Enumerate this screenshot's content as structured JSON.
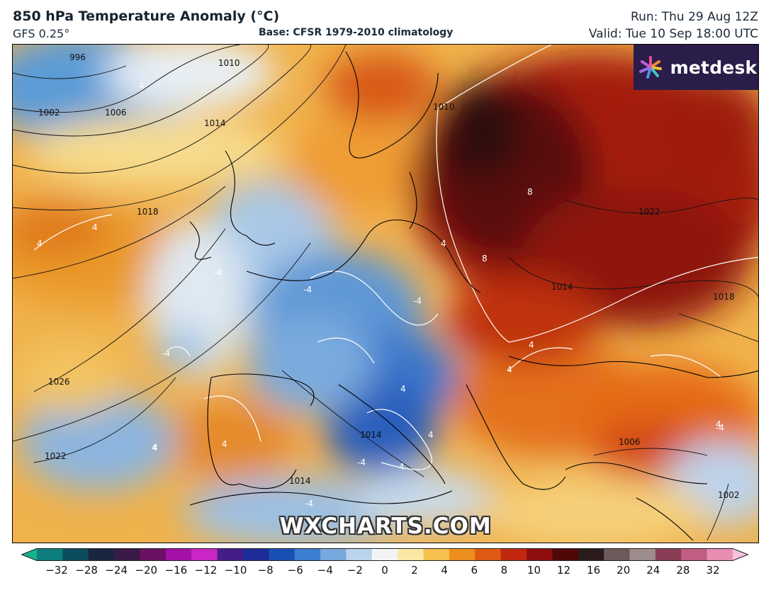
{
  "header": {
    "title": "850 hPa Temperature Anomaly (°C)",
    "model": "GFS 0.25°",
    "base": "Base: CFSR 1979-2010 climatology",
    "run": "Run: Thu 29 Aug 12Z",
    "valid": "Valid: Tue 10 Sep 18:00 UTC"
  },
  "logo": {
    "text": "metdesk",
    "icon": "metdesk-flower-icon"
  },
  "watermark": "WXCHARTS.COM",
  "isobar_labels": [
    "1002",
    "996",
    "1006",
    "1010",
    "1014",
    "1018",
    "1026",
    "1022",
    "1014",
    "1014",
    "1010",
    "1022",
    "1018",
    "1014",
    "1006",
    "1002"
  ],
  "anomaly_labels": [
    "4",
    "4",
    "4",
    "-4",
    "-4",
    "-4",
    "4",
    "4",
    "-4",
    "8",
    "8",
    "4",
    "4",
    "4",
    "-4",
    "4",
    "4",
    "-4",
    "4",
    "4",
    "4",
    "-4"
  ],
  "colorbar": {
    "ticks": [
      "−32",
      "−28",
      "−24",
      "−20",
      "−16",
      "−12",
      "−10",
      "−8",
      "−6",
      "−4",
      "−2",
      "0",
      "2",
      "4",
      "6",
      "8",
      "10",
      "12",
      "16",
      "20",
      "24",
      "28",
      "32"
    ],
    "colors": [
      "#12b38e",
      "#0e7e7c",
      "#0d4c5e",
      "#1a2540",
      "#3a1a46",
      "#6a1163",
      "#a312a7",
      "#cb25c6",
      "#451d86",
      "#1d2c96",
      "#1a4fb4",
      "#3a7fd0",
      "#77a8de",
      "#bcd3ec",
      "#f2f4f6",
      "#fbe8a6",
      "#f5c04e",
      "#ec8f1c",
      "#de5a12",
      "#c22710",
      "#8e0f0e",
      "#4f0807",
      "#2a1c1c",
      "#6c5a5a",
      "#9e8d8d",
      "#8a3d54",
      "#c05d82",
      "#e68db1",
      "#f6c3dc"
    ]
  },
  "colors": {
    "anomaly_cold": "#2c6fcf",
    "anomaly_warm": "#c1370f",
    "anomaly_hot": "#3b0a0a",
    "logo_bg": "#2a1d4a"
  }
}
